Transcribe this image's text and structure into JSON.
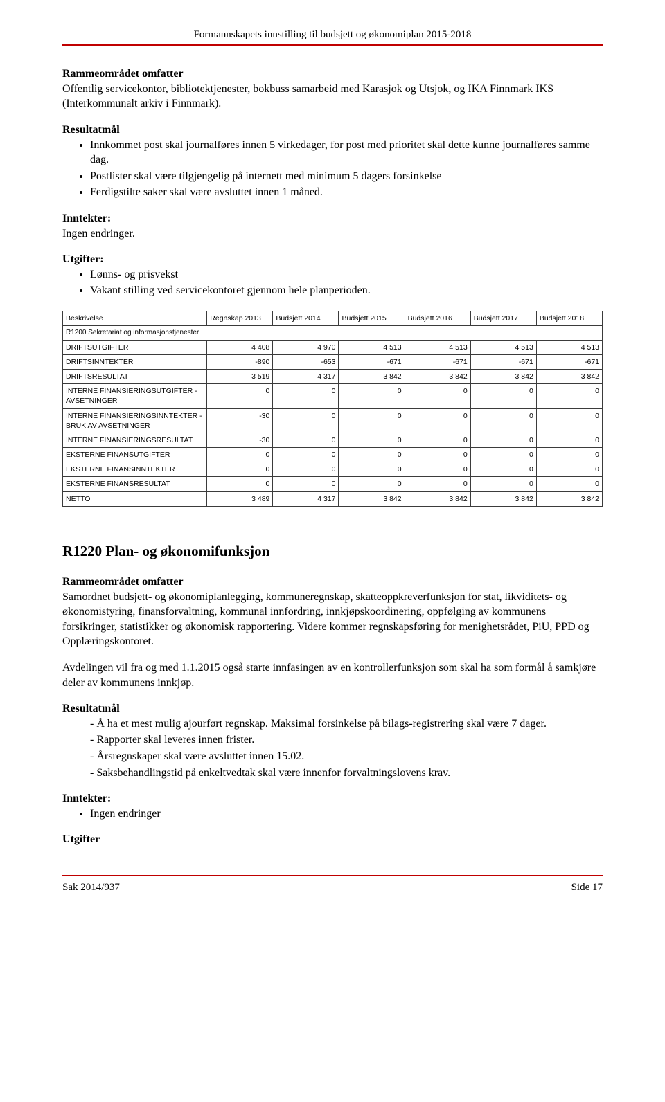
{
  "header": {
    "title": "Formannskapets innstilling til budsjett og økonomiplan 2015-2018",
    "rule_color": "#c00000"
  },
  "section1": {
    "heading": "Rammeområdet omfatter",
    "text": "Offentlig servicekontor, bibliotektjenester, bokbuss samarbeid med Karasjok og Utsjok, og IKA Finnmark IKS (Interkommunalt arkiv i Finnmark)."
  },
  "resultatmal1": {
    "heading": "Resultatmål",
    "items": [
      "Innkommet post skal journalføres innen 5 virkedager, for post med prioritet skal dette kunne journalføres samme dag.",
      "Postlister skal være tilgjengelig på internett med minimum 5 dagers forsinkelse",
      "Ferdigstilte saker skal være avsluttet innen 1 måned."
    ]
  },
  "inntekter1": {
    "heading": "Inntekter:",
    "text": "Ingen endringer."
  },
  "utgifter1": {
    "heading": "Utgifter:",
    "items": [
      "Lønns- og prisvekst",
      "Vakant stilling ved servicekontoret gjennom hele planperioden."
    ]
  },
  "table": {
    "columns": [
      "Beskrivelse",
      "Regnskap 2013",
      "Budsjett 2014",
      "Budsjett 2015",
      "Budsjett 2016",
      "Budsjett 2017",
      "Budsjett 2018"
    ],
    "section_label": "R1200 Sekretariat og informasjonstjenester",
    "rows": [
      {
        "label": "DRIFTSUTGIFTER",
        "vals": [
          "4 408",
          "4 970",
          "4 513",
          "4 513",
          "4 513",
          "4 513"
        ]
      },
      {
        "label": "DRIFTSINNTEKTER",
        "vals": [
          "-890",
          "-653",
          "-671",
          "-671",
          "-671",
          "-671"
        ]
      },
      {
        "label": "DRIFTSRESULTAT",
        "vals": [
          "3 519",
          "4 317",
          "3 842",
          "3 842",
          "3 842",
          "3 842"
        ]
      },
      {
        "label": "INTERNE FINANSIERINGSUTGIFTER - AVSETNINGER",
        "vals": [
          "0",
          "0",
          "0",
          "0",
          "0",
          "0"
        ]
      },
      {
        "label": "INTERNE FINANSIERINGSINNTEKTER - BRUK AV AVSETNINGER",
        "vals": [
          "-30",
          "0",
          "0",
          "0",
          "0",
          "0"
        ]
      },
      {
        "label": "INTERNE FINANSIERINGSRESULTAT",
        "vals": [
          "-30",
          "0",
          "0",
          "0",
          "0",
          "0"
        ]
      },
      {
        "label": "EKSTERNE FINANSUTGIFTER",
        "vals": [
          "0",
          "0",
          "0",
          "0",
          "0",
          "0"
        ]
      },
      {
        "label": "EKSTERNE FINANSINNTEKTER",
        "vals": [
          "0",
          "0",
          "0",
          "0",
          "0",
          "0"
        ]
      },
      {
        "label": "EKSTERNE FINANSRESULTAT",
        "vals": [
          "0",
          "0",
          "0",
          "0",
          "0",
          "0"
        ]
      },
      {
        "label": "NETTO",
        "vals": [
          "3 489",
          "4 317",
          "3 842",
          "3 842",
          "3 842",
          "3 842"
        ]
      }
    ],
    "border_color": "#3b3b3b",
    "font_size": 10.5
  },
  "section2": {
    "title": "R1220 Plan- og økonomifunksjon",
    "sub_heading": "Rammeområdet omfatter",
    "text": "Samordnet budsjett- og økonomiplanlegging, kommuneregnskap, skatteoppkreverfunksjon for stat, likviditets- og økonomistyring, finansforvaltning, kommunal innfordring, innkjøpskoordinering, oppfølging av kommunens forsikringer, statistikker og økonomisk rapportering. Videre kommer regnskapsføring for menighetsrådet, PiU, PPD og Opplæringskontoret."
  },
  "avdeling_text": "Avdelingen vil fra og med 1.1.2015 også starte innfasingen av en kontrollerfunksjon som skal ha som formål å samkjøre deler av kommunens innkjøp.",
  "resultatmal2": {
    "heading": "Resultatmål",
    "items": [
      "Å ha et mest mulig ajourført regnskap. Maksimal forsinkelse på bilags-registrering skal være 7 dager.",
      "Rapporter skal leveres innen frister.",
      "Årsregnskaper skal være avsluttet innen 15.02.",
      "Saksbehandlingstid på enkeltvedtak skal være innenfor forvaltningslovens krav."
    ]
  },
  "inntekter2": {
    "heading": "Inntekter:",
    "items": [
      "Ingen endringer"
    ]
  },
  "utgifter_heading": "Utgifter",
  "footer": {
    "left": "Sak 2014/937",
    "right": "Side 17",
    "rule_color": "#c00000"
  }
}
